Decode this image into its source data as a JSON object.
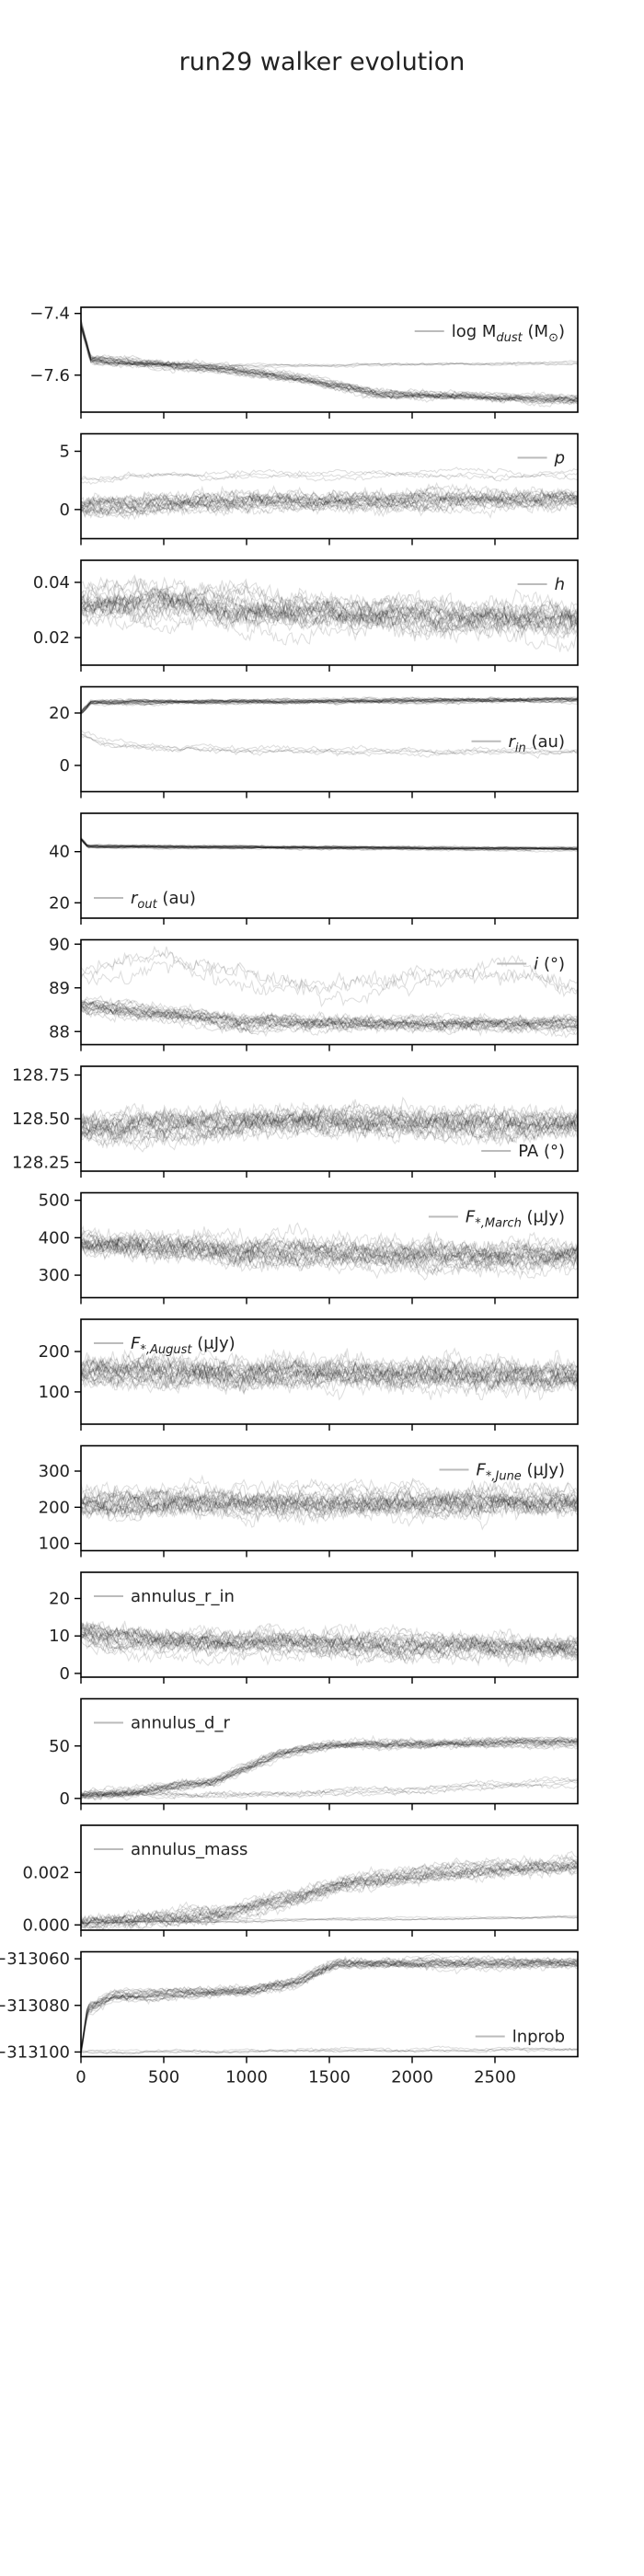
{
  "figure": {
    "title": "run29 walker evolution"
  },
  "chart_data": {
    "type": "line",
    "title": "run29 walker evolution",
    "x_ticks": [
      "0",
      "500",
      "1000",
      "1500",
      "2000",
      "2500"
    ],
    "x_range": [
      0,
      3000
    ],
    "panels": [
      {
        "legend": {
          "main": "log M",
          "sub": "dust",
          "after": " (M",
          "sym": "⊙",
          "tail": ")"
        },
        "legend_pos": "top-right",
        "ylim": [
          -7.72,
          -7.38
        ],
        "yticks": [
          {
            "v": -7.4,
            "label": "−7.4"
          },
          {
            "v": -7.6,
            "label": "−7.6"
          }
        ],
        "walkers": [
          {
            "count": 4,
            "points": [
              [
                0,
                -7.42
              ],
              [
                60,
                -7.55
              ],
              [
                200,
                -7.56
              ],
              [
                1000,
                -7.57
              ],
              [
                3000,
                -7.56
              ]
            ],
            "noise": 0.005
          },
          {
            "count": 22,
            "points": [
              [
                0,
                -7.44
              ],
              [
                60,
                -7.55
              ],
              [
                600,
                -7.57
              ],
              [
                1200,
                -7.6
              ],
              [
                1800,
                -7.66
              ],
              [
                3000,
                -7.68
              ]
            ],
            "noise": 0.012
          }
        ]
      },
      {
        "legend": {
          "main": "p"
        },
        "legend_pos": "top-right",
        "ylim": [
          -2.5,
          6.5
        ],
        "yticks": [
          {
            "v": 5,
            "label": "5"
          },
          {
            "v": 0,
            "label": "0"
          }
        ],
        "walkers": [
          {
            "count": 3,
            "points": [
              [
                0,
                2.5
              ],
              [
                300,
                3.0
              ],
              [
                3000,
                3.0
              ]
            ],
            "noise": 0.3
          },
          {
            "count": 22,
            "points": [
              [
                0,
                0.3
              ],
              [
                600,
                0.6
              ],
              [
                3000,
                1.0
              ]
            ],
            "noise": 0.7
          }
        ]
      },
      {
        "legend": {
          "main": "h"
        },
        "legend_pos": "top-right",
        "ylim": [
          0.01,
          0.048
        ],
        "yticks": [
          {
            "v": 0.04,
            "label": "0.04"
          },
          {
            "v": 0.02,
            "label": "0.02"
          }
        ],
        "walkers": [
          {
            "count": 25,
            "points": [
              [
                0,
                0.032
              ],
              [
                800,
                0.031
              ],
              [
                1800,
                0.027
              ],
              [
                3000,
                0.026
              ]
            ],
            "noise": 0.005
          }
        ]
      },
      {
        "legend": {
          "main": "r",
          "sub": "in",
          "after": " (au)"
        },
        "legend_pos": "mid-right",
        "ylim": [
          -10,
          30
        ],
        "yticks": [
          {
            "v": 20,
            "label": "20"
          },
          {
            "v": 0,
            "label": "0"
          }
        ],
        "walkers": [
          {
            "count": 4,
            "points": [
              [
                0,
                12
              ],
              [
                150,
                8
              ],
              [
                600,
                6
              ],
              [
                1500,
                5
              ],
              [
                3000,
                5
              ]
            ],
            "noise": 1.2
          },
          {
            "count": 22,
            "points": [
              [
                0,
                20
              ],
              [
                60,
                24
              ],
              [
                3000,
                25
              ]
            ],
            "noise": 0.8
          }
        ]
      },
      {
        "legend": {
          "main": "r",
          "sub": "out",
          "after": " (au)"
        },
        "legend_pos": "bottom-left",
        "ylim": [
          14,
          55
        ],
        "yticks": [
          {
            "v": 40,
            "label": "40"
          },
          {
            "v": 20,
            "label": "20"
          }
        ],
        "walkers": [
          {
            "count": 25,
            "points": [
              [
                0,
                45
              ],
              [
                40,
                42
              ],
              [
                3000,
                41
              ]
            ],
            "noise": 0.5
          }
        ]
      },
      {
        "legend": {
          "main": "i",
          "after": " (°)"
        },
        "legend_pos": "top-right",
        "ylim": [
          87.7,
          90.1
        ],
        "yticks": [
          {
            "v": 90,
            "label": "90"
          },
          {
            "v": 89,
            "label": "89"
          },
          {
            "v": 88,
            "label": "88"
          }
        ],
        "walkers": [
          {
            "count": 3,
            "points": [
              [
                0,
                89.3
              ],
              [
                500,
                89.7
              ],
              [
                1500,
                89.0
              ],
              [
                2500,
                89.4
              ],
              [
                3000,
                89.1
              ]
            ],
            "noise": 0.25
          },
          {
            "count": 22,
            "points": [
              [
                0,
                88.6
              ],
              [
                500,
                88.4
              ],
              [
                1000,
                88.2
              ],
              [
                3000,
                88.2
              ]
            ],
            "noise": 0.15
          }
        ]
      },
      {
        "legend": {
          "main": "PA",
          "after": " (°)"
        },
        "legend_pos": "bottom-right",
        "ylim": [
          128.2,
          128.8
        ],
        "yticks": [
          {
            "v": 128.75,
            "label": "128.75"
          },
          {
            "v": 128.5,
            "label": "128.50"
          },
          {
            "v": 128.25,
            "label": "128.25"
          }
        ],
        "walkers": [
          {
            "count": 25,
            "points": [
              [
                0,
                128.45
              ],
              [
                1000,
                128.49
              ],
              [
                3000,
                128.48
              ]
            ],
            "noise": 0.07
          }
        ]
      },
      {
        "legend": {
          "main": "F",
          "sub": "*,March",
          "after": " (μJy)"
        },
        "legend_pos": "top-right",
        "ylim": [
          240,
          520
        ],
        "yticks": [
          {
            "v": 500,
            "label": "500"
          },
          {
            "v": 400,
            "label": "400"
          },
          {
            "v": 300,
            "label": "300"
          }
        ],
        "walkers": [
          {
            "count": 25,
            "points": [
              [
                0,
                390
              ],
              [
                1000,
                360
              ],
              [
                3000,
                350
              ]
            ],
            "noise": 30
          }
        ]
      },
      {
        "legend": {
          "main": "F",
          "sub": "*,August",
          "after": " (μJy)"
        },
        "legend_pos": "top-left",
        "ylim": [
          20,
          280
        ],
        "yticks": [
          {
            "v": 200,
            "label": "200"
          },
          {
            "v": 100,
            "label": "100"
          }
        ],
        "walkers": [
          {
            "count": 25,
            "points": [
              [
                0,
                150
              ],
              [
                3000,
                145
              ]
            ],
            "noise": 32
          }
        ]
      },
      {
        "legend": {
          "main": "F",
          "sub": "*,June",
          "after": " (μJy)"
        },
        "legend_pos": "top-right",
        "ylim": [
          80,
          370
        ],
        "yticks": [
          {
            "v": 300,
            "label": "300"
          },
          {
            "v": 200,
            "label": "200"
          },
          {
            "v": 100,
            "label": "100"
          }
        ],
        "walkers": [
          {
            "count": 25,
            "points": [
              [
                0,
                210
              ],
              [
                3000,
                215
              ]
            ],
            "noise": 32
          }
        ]
      },
      {
        "legend": {
          "main": "annulus_r_in"
        },
        "legend_pos": "top-left",
        "ylim": [
          -1,
          27
        ],
        "yticks": [
          {
            "v": 20,
            "label": "20"
          },
          {
            "v": 10,
            "label": "10"
          },
          {
            "v": 0,
            "label": "0"
          }
        ],
        "walkers": [
          {
            "count": 25,
            "points": [
              [
                0,
                11
              ],
              [
                200,
                9
              ],
              [
                1000,
                8
              ],
              [
                3000,
                7
              ]
            ],
            "noise": 2.6
          }
        ]
      },
      {
        "legend": {
          "main": "annulus_d_r"
        },
        "legend_pos": "top-left",
        "ylim": [
          -5,
          95
        ],
        "yticks": [
          {
            "v": 50,
            "label": "50"
          },
          {
            "v": 0,
            "label": "0"
          }
        ],
        "walkers": [
          {
            "count": 5,
            "points": [
              [
                0,
                3
              ],
              [
                1000,
                3
              ],
              [
                2000,
                8
              ],
              [
                3000,
                16
              ]
            ],
            "noise": 3
          },
          {
            "count": 20,
            "points": [
              [
                0,
                2
              ],
              [
                300,
                5
              ],
              [
                800,
                15
              ],
              [
                1200,
                42
              ],
              [
                1500,
                50
              ],
              [
                3000,
                53
              ]
            ],
            "noise": 4
          }
        ]
      },
      {
        "legend": {
          "main": "annulus_mass"
        },
        "legend_pos": "top-left",
        "ylim": [
          -0.0002,
          0.0038
        ],
        "yticks": [
          {
            "v": 0.002,
            "label": "0.002"
          },
          {
            "v": 0.0,
            "label": "0.000"
          }
        ],
        "walkers": [
          {
            "count": 4,
            "points": [
              [
                0,
                0.0001
              ],
              [
                1500,
                0.0002
              ],
              [
                3000,
                0.0003
              ]
            ],
            "noise": 5e-05
          },
          {
            "count": 21,
            "points": [
              [
                0,
                0.0001
              ],
              [
                800,
                0.0004
              ],
              [
                1200,
                0.0009
              ],
              [
                1600,
                0.0016
              ],
              [
                2200,
                0.002
              ],
              [
                3000,
                0.0023
              ]
            ],
            "noise": 0.00025
          }
        ]
      },
      {
        "legend": {
          "main": "lnprob"
        },
        "legend_pos": "bottom-right",
        "ylim": [
          -313102,
          -313057
        ],
        "yticks": [
          {
            "v": -313060,
            "label": "−313060"
          },
          {
            "v": -313080,
            "label": "−313080"
          },
          {
            "v": -313100,
            "label": "−313100"
          }
        ],
        "walkers": [
          {
            "count": 4,
            "points": [
              [
                0,
                -313100
              ],
              [
                3000,
                -313099
              ]
            ],
            "noise": 0.8
          },
          {
            "count": 22,
            "points": [
              [
                0,
                -313100
              ],
              [
                40,
                -313082
              ],
              [
                200,
                -313076
              ],
              [
                1000,
                -313074
              ],
              [
                1300,
                -313070
              ],
              [
                1550,
                -313062
              ],
              [
                3000,
                -313062
              ]
            ],
            "noise": 1.8
          }
        ]
      }
    ]
  }
}
